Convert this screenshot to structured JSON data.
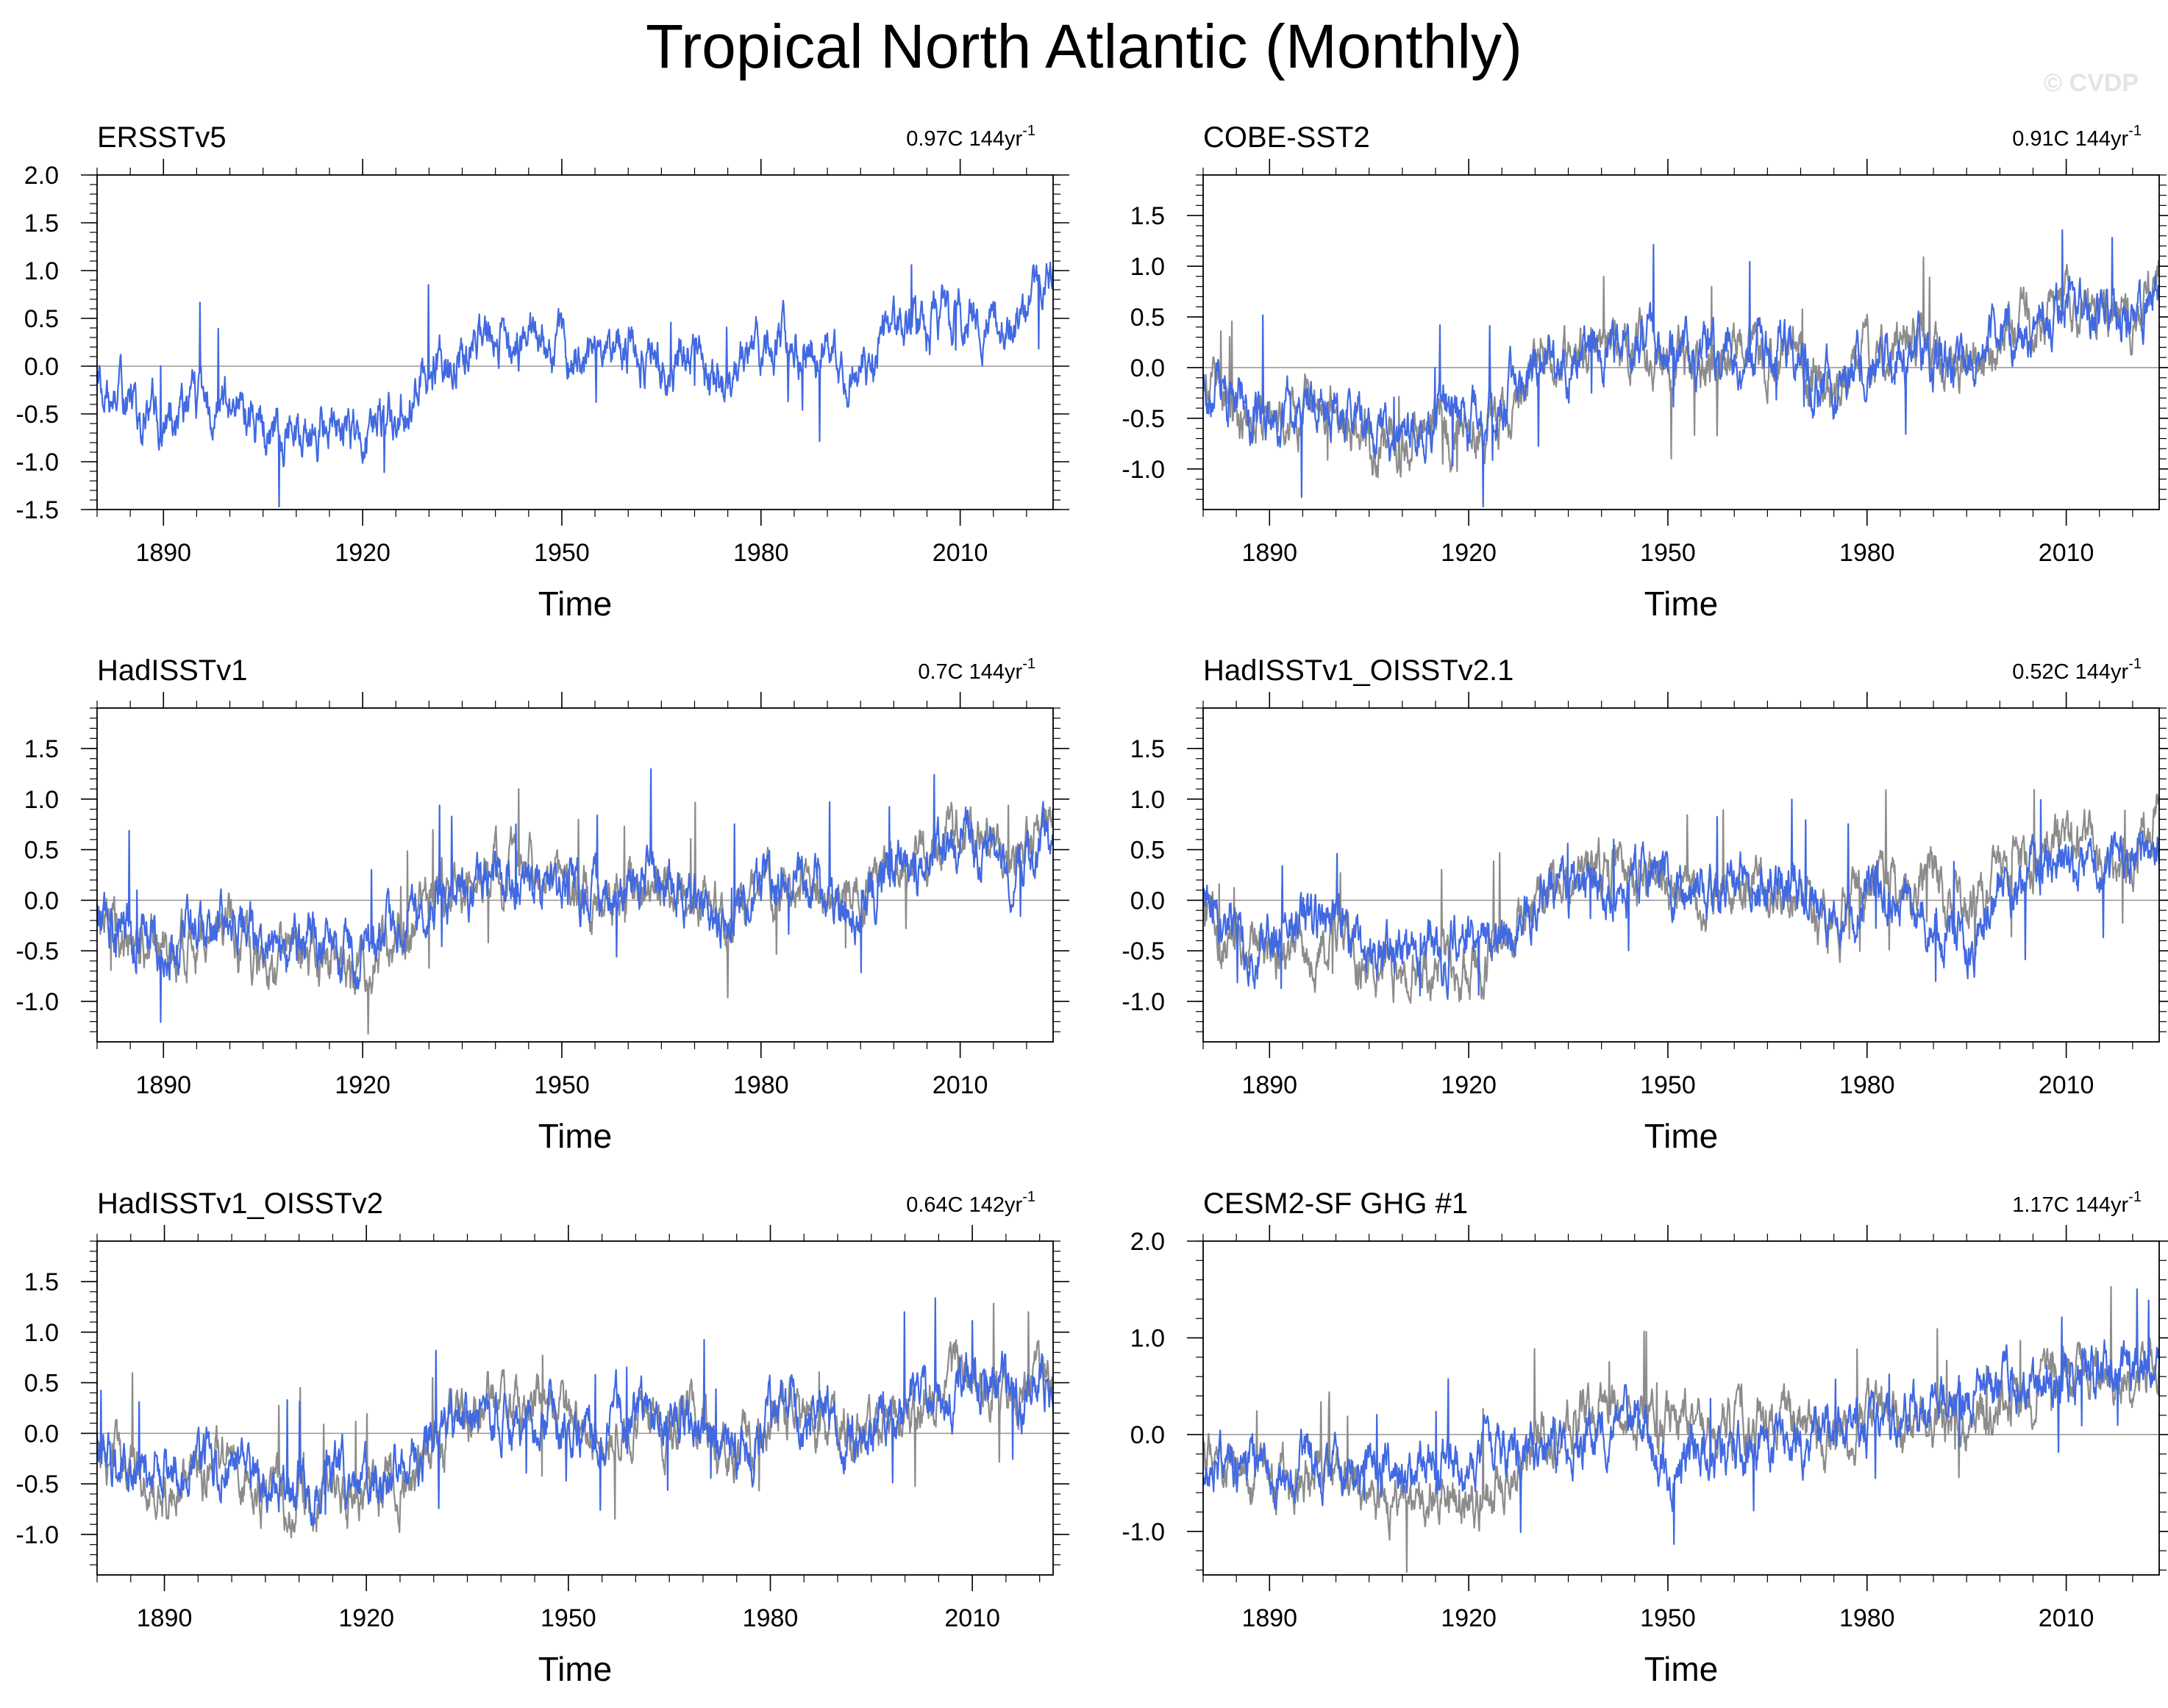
{
  "title": "Tropical North Atlantic (Monthly)",
  "watermark": "© CVDP",
  "chart_data": [
    {
      "type": "line",
      "name": "ERSSTv5",
      "trend": "0.97C 144yr",
      "trend_exponent": "-1",
      "xlabel": "Time",
      "ylabel": "",
      "xlim": [
        1880,
        2024
      ],
      "ylim": [
        -1.5,
        2.0
      ],
      "yticks": [
        -1.5,
        -1.0,
        -0.5,
        0.0,
        0.5,
        1.0,
        1.5,
        2.0
      ],
      "ytick_labels": [
        "-1.5",
        "-1.0",
        "-0.5",
        "0.0",
        "0.5",
        "1.0",
        "1.5",
        "2.0"
      ],
      "xticks": [
        1890,
        1920,
        1950,
        1980,
        2010
      ],
      "xtick_labels": [
        "1890",
        "1920",
        "1950",
        "1980",
        "2010"
      ],
      "series": [
        {
          "name": "ERSSTv5",
          "color": "#4169e1",
          "x": [
            1880,
            1885,
            1890,
            1895,
            1900,
            1905,
            1910,
            1915,
            1920,
            1925,
            1930,
            1935,
            1940,
            1945,
            1950,
            1955,
            1960,
            1965,
            1970,
            1975,
            1980,
            1985,
            1990,
            1995,
            2000,
            2005,
            2010,
            2015,
            2020,
            2024
          ],
          "values": [
            -0.2,
            -0.4,
            -0.6,
            -0.4,
            -0.3,
            -0.7,
            -0.7,
            -0.6,
            -0.7,
            -0.5,
            0.0,
            0.1,
            0.3,
            0.3,
            0.1,
            0.0,
            0.2,
            0.1,
            0.1,
            -0.3,
            0.2,
            0.2,
            0.1,
            0.0,
            0.3,
            0.4,
            0.6,
            0.5,
            0.5,
            0.9
          ]
        }
      ]
    },
    {
      "type": "line",
      "name": "COBE-SST2",
      "trend": "0.91C 144yr",
      "trend_exponent": "-1",
      "xlabel": "Time",
      "ylabel": "",
      "xlim": [
        1880,
        2024
      ],
      "ylim": [
        -1.4,
        1.9
      ],
      "yticks": [
        -1.0,
        -0.5,
        0.0,
        0.5,
        1.0,
        1.5
      ],
      "ytick_labels": [
        "-1.0",
        "-0.5",
        "0.0",
        "0.5",
        "1.0",
        "1.5"
      ],
      "xticks": [
        1890,
        1920,
        1950,
        1980,
        2010
      ],
      "xtick_labels": [
        "1890",
        "1920",
        "1950",
        "1980",
        "2010"
      ],
      "series": [
        {
          "name": "ERSSTv5",
          "color": "#8c8c8c",
          "x": [
            1880,
            1885,
            1890,
            1895,
            1900,
            1905,
            1910,
            1915,
            1920,
            1925,
            1930,
            1935,
            1940,
            1945,
            1950,
            1955,
            1960,
            1965,
            1970,
            1975,
            1980,
            1985,
            1990,
            1995,
            2000,
            2005,
            2010,
            2015,
            2020,
            2024
          ],
          "values": [
            -0.2,
            -0.4,
            -0.6,
            -0.4,
            -0.3,
            -0.7,
            -0.7,
            -0.6,
            -0.7,
            -0.5,
            0.0,
            0.1,
            0.3,
            0.3,
            0.1,
            0.0,
            0.2,
            0.1,
            0.1,
            -0.3,
            0.2,
            0.2,
            0.1,
            0.0,
            0.3,
            0.4,
            0.6,
            0.5,
            0.5,
            0.9
          ]
        },
        {
          "name": "COBE-SST2",
          "color": "#4169e1",
          "x": [
            1880,
            1885,
            1890,
            1895,
            1900,
            1905,
            1910,
            1915,
            1920,
            1925,
            1930,
            1935,
            1940,
            1945,
            1950,
            1955,
            1960,
            1965,
            1970,
            1975,
            1980,
            1985,
            1990,
            1995,
            2000,
            2005,
            2010,
            2015,
            2020,
            2024
          ],
          "values": [
            -0.2,
            -0.35,
            -0.5,
            -0.35,
            -0.25,
            -0.6,
            -0.55,
            -0.5,
            -0.55,
            -0.4,
            0.0,
            0.1,
            0.25,
            0.3,
            0.15,
            0.05,
            0.2,
            0.1,
            0.1,
            -0.25,
            0.2,
            0.2,
            0.1,
            0.0,
            0.35,
            0.4,
            0.6,
            0.5,
            0.5,
            0.85
          ]
        }
      ]
    },
    {
      "type": "line",
      "name": "HadISSTv1",
      "trend": "0.7C 144yr",
      "trend_exponent": "-1",
      "xlabel": "Time",
      "ylabel": "",
      "xlim": [
        1880,
        2024
      ],
      "ylim": [
        -1.4,
        1.9
      ],
      "yticks": [
        -1.0,
        -0.5,
        0.0,
        0.5,
        1.0,
        1.5
      ],
      "ytick_labels": [
        "-1.0",
        "-0.5",
        "0.0",
        "0.5",
        "1.0",
        "1.5"
      ],
      "xticks": [
        1890,
        1920,
        1950,
        1980,
        2010
      ],
      "xtick_labels": [
        "1890",
        "1920",
        "1950",
        "1980",
        "2010"
      ],
      "series": [
        {
          "name": "ERSSTv5",
          "color": "#8c8c8c",
          "x": [
            1880,
            1885,
            1890,
            1895,
            1900,
            1905,
            1910,
            1915,
            1920,
            1925,
            1930,
            1935,
            1940,
            1945,
            1950,
            1955,
            1960,
            1965,
            1970,
            1975,
            1980,
            1985,
            1990,
            1995,
            2000,
            2005,
            2010,
            2015,
            2020,
            2024
          ],
          "values": [
            -0.2,
            -0.4,
            -0.6,
            -0.4,
            -0.3,
            -0.7,
            -0.7,
            -0.6,
            -0.7,
            -0.5,
            0.0,
            0.1,
            0.3,
            0.3,
            0.1,
            0.0,
            0.2,
            0.1,
            0.1,
            -0.3,
            0.2,
            0.2,
            0.1,
            0.0,
            0.3,
            0.4,
            0.6,
            0.5,
            0.5,
            0.9
          ]
        },
        {
          "name": "HadISSTv1",
          "color": "#4169e1",
          "x": [
            1880,
            1885,
            1890,
            1895,
            1900,
            1905,
            1910,
            1915,
            1920,
            1925,
            1930,
            1935,
            1940,
            1945,
            1950,
            1955,
            1960,
            1965,
            1970,
            1975,
            1980,
            1985,
            1990,
            1995,
            2000,
            2005,
            2010,
            2015,
            2020,
            2024
          ],
          "values": [
            -0.15,
            -0.3,
            -0.45,
            -0.3,
            -0.2,
            -0.55,
            -0.5,
            -0.45,
            -0.5,
            -0.35,
            0.05,
            0.1,
            0.2,
            0.15,
            0.1,
            0.05,
            0.2,
            0.15,
            0.1,
            -0.2,
            0.2,
            0.25,
            0.0,
            -0.1,
            0.3,
            0.45,
            0.55,
            0.4,
            0.45,
            0.8
          ]
        }
      ]
    },
    {
      "type": "line",
      "name": "HadISSTv1_OISSTv2.1",
      "trend": "0.52C 144yr",
      "trend_exponent": "-1",
      "xlabel": "Time",
      "ylabel": "",
      "xlim": [
        1880,
        2024
      ],
      "ylim": [
        -1.4,
        1.9
      ],
      "yticks": [
        -1.0,
        -0.5,
        0.0,
        0.5,
        1.0,
        1.5
      ],
      "ytick_labels": [
        "-1.0",
        "-0.5",
        "0.0",
        "0.5",
        "1.0",
        "1.5"
      ],
      "xticks": [
        1890,
        1920,
        1950,
        1980,
        2010
      ],
      "xtick_labels": [
        "1890",
        "1920",
        "1950",
        "1980",
        "2010"
      ],
      "series": [
        {
          "name": "ERSSTv5",
          "color": "#8c8c8c",
          "x": [
            1880,
            1885,
            1890,
            1895,
            1900,
            1905,
            1910,
            1915,
            1920,
            1925,
            1930,
            1935,
            1940,
            1945,
            1950,
            1955,
            1960,
            1965,
            1970,
            1975,
            1980,
            1985,
            1990,
            1995,
            2000,
            2005,
            2010,
            2015,
            2020,
            2024
          ],
          "values": [
            -0.2,
            -0.4,
            -0.6,
            -0.4,
            -0.3,
            -0.7,
            -0.7,
            -0.6,
            -0.7,
            -0.5,
            0.0,
            0.1,
            0.3,
            0.3,
            0.1,
            0.0,
            0.2,
            0.1,
            0.1,
            -0.3,
            0.2,
            0.2,
            0.1,
            0.0,
            0.3,
            0.4,
            0.6,
            0.5,
            0.5,
            0.9
          ]
        },
        {
          "name": "HadISSTv1_OISSTv2.1",
          "color": "#4169e1",
          "x": [
            1880,
            1885,
            1890,
            1895,
            1900,
            1905,
            1910,
            1915,
            1920,
            1925,
            1930,
            1935,
            1940,
            1945,
            1950,
            1955,
            1960,
            1965,
            1970,
            1975,
            1980,
            1985,
            1990,
            1995,
            2000,
            2005,
            2010,
            2015,
            2020,
            2024
          ],
          "values": [
            -0.15,
            -0.3,
            -0.45,
            -0.3,
            -0.2,
            -0.55,
            -0.5,
            -0.45,
            -0.5,
            -0.35,
            0.05,
            0.15,
            0.25,
            0.2,
            0.15,
            0.05,
            0.2,
            0.15,
            0.1,
            -0.25,
            0.1,
            0.0,
            -0.3,
            -0.35,
            0.1,
            0.25,
            0.4,
            0.3,
            0.35,
            0.6
          ]
        }
      ]
    },
    {
      "type": "line",
      "name": "HadISSTv1_OISSTv2",
      "trend": "0.64C 142yr",
      "trend_exponent": "-1",
      "xlabel": "Time",
      "ylabel": "",
      "xlim": [
        1880,
        2022
      ],
      "ylim": [
        -1.4,
        1.9
      ],
      "yticks": [
        -1.0,
        -0.5,
        0.0,
        0.5,
        1.0,
        1.5
      ],
      "ytick_labels": [
        "-1.0",
        "-0.5",
        "0.0",
        "0.5",
        "1.0",
        "1.5"
      ],
      "xticks": [
        1890,
        1920,
        1950,
        1980,
        2010
      ],
      "xtick_labels": [
        "1890",
        "1920",
        "1950",
        "1980",
        "2010"
      ],
      "series": [
        {
          "name": "ERSSTv5",
          "color": "#8c8c8c",
          "x": [
            1880,
            1885,
            1890,
            1895,
            1900,
            1905,
            1910,
            1915,
            1920,
            1925,
            1930,
            1935,
            1940,
            1945,
            1950,
            1955,
            1960,
            1965,
            1970,
            1975,
            1980,
            1985,
            1990,
            1995,
            2000,
            2005,
            2010,
            2015,
            2020,
            2022
          ],
          "values": [
            -0.2,
            -0.4,
            -0.6,
            -0.4,
            -0.3,
            -0.7,
            -0.7,
            -0.6,
            -0.7,
            -0.5,
            0.0,
            0.1,
            0.3,
            0.3,
            0.1,
            0.0,
            0.2,
            0.1,
            0.1,
            -0.3,
            0.2,
            0.2,
            0.1,
            0.0,
            0.3,
            0.4,
            0.6,
            0.5,
            0.5,
            0.6
          ]
        },
        {
          "name": "HadISSTv1_OISSTv2",
          "color": "#4169e1",
          "x": [
            1880,
            1885,
            1890,
            1895,
            1900,
            1905,
            1910,
            1915,
            1920,
            1925,
            1930,
            1935,
            1940,
            1945,
            1950,
            1955,
            1960,
            1965,
            1970,
            1975,
            1980,
            1985,
            1990,
            1995,
            2000,
            2005,
            2010,
            2015,
            2020,
            2022
          ],
          "values": [
            -0.15,
            -0.3,
            -0.45,
            -0.3,
            -0.2,
            -0.55,
            -0.5,
            -0.45,
            -0.5,
            -0.35,
            0.05,
            0.1,
            0.2,
            0.15,
            0.1,
            0.05,
            0.2,
            0.15,
            0.1,
            -0.2,
            0.15,
            0.2,
            0.0,
            -0.05,
            0.3,
            0.4,
            0.55,
            0.4,
            0.45,
            0.5
          ]
        }
      ]
    },
    {
      "type": "line",
      "name": "CESM2-SF GHG #1",
      "trend": "1.17C 144yr",
      "trend_exponent": "-1",
      "xlabel": "Time",
      "ylabel": "",
      "xlim": [
        1880,
        2024
      ],
      "ylim": [
        -1.45,
        2.0
      ],
      "yticks": [
        -1.0,
        0.0,
        1.0,
        2.0
      ],
      "ytick_labels": [
        "-1.0",
        "0.0",
        "1.0",
        "2.0"
      ],
      "xticks": [
        1890,
        1920,
        1950,
        1980,
        2010
      ],
      "xtick_labels": [
        "1890",
        "1920",
        "1950",
        "1980",
        "2010"
      ],
      "series": [
        {
          "name": "ERSSTv5",
          "color": "#8c8c8c",
          "x": [
            1880,
            1885,
            1890,
            1895,
            1900,
            1905,
            1910,
            1915,
            1920,
            1925,
            1930,
            1935,
            1940,
            1945,
            1950,
            1955,
            1960,
            1965,
            1970,
            1975,
            1980,
            1985,
            1990,
            1995,
            2000,
            2005,
            2010,
            2015,
            2020,
            2024
          ],
          "values": [
            -0.2,
            -0.4,
            -0.6,
            -0.4,
            -0.3,
            -0.7,
            -0.7,
            -0.6,
            -0.7,
            -0.5,
            0.0,
            0.1,
            0.3,
            0.3,
            0.1,
            0.0,
            0.2,
            0.1,
            0.1,
            -0.3,
            0.2,
            0.2,
            0.1,
            0.0,
            0.3,
            0.4,
            0.6,
            0.5,
            0.5,
            0.9
          ]
        },
        {
          "name": "CESM2-SF GHG #1",
          "color": "#4169e1",
          "x": [
            1880,
            1885,
            1890,
            1895,
            1900,
            1905,
            1910,
            1915,
            1920,
            1925,
            1930,
            1935,
            1940,
            1945,
            1950,
            1955,
            1960,
            1965,
            1970,
            1975,
            1980,
            1985,
            1990,
            1995,
            2000,
            2005,
            2010,
            2015,
            2020,
            2024
          ],
          "values": [
            -0.3,
            -0.35,
            -0.4,
            -0.3,
            -0.35,
            -0.45,
            -0.35,
            -0.3,
            -0.4,
            -0.2,
            -0.25,
            -0.1,
            0.05,
            0.2,
            -0.35,
            -0.15,
            -0.1,
            -0.2,
            0.0,
            0.1,
            0.1,
            0.2,
            0.25,
            0.35,
            0.45,
            0.55,
            0.6,
            0.65,
            0.6,
            0.55
          ]
        }
      ]
    }
  ]
}
